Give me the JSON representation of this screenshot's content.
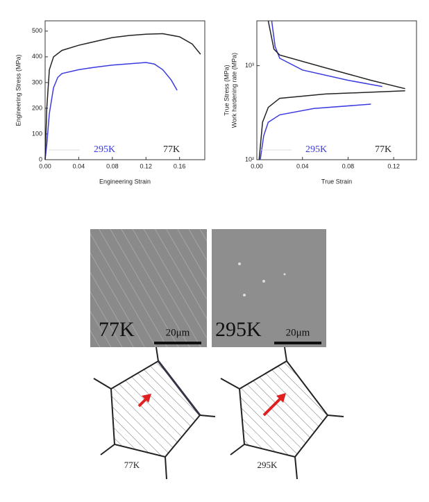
{
  "chart_data": [
    {
      "type": "line",
      "xlabel": "Engineering Strain",
      "ylabel": "Engineering Stress (MPa)",
      "xlim": [
        0,
        0.19
      ],
      "ylim": [
        0,
        540
      ],
      "xticks": [
        {
          "value": 0,
          "label": "0.00"
        },
        {
          "value": 0.04,
          "label": "0.04"
        },
        {
          "value": 0.08,
          "label": "0.08"
        },
        {
          "value": 0.12,
          "label": "0.12"
        },
        {
          "value": 0.16,
          "label": "0.16"
        }
      ],
      "yticks": [
        0,
        100,
        200,
        300,
        400,
        500
      ],
      "series": [
        {
          "name": "295K",
          "color": "#3a3ae0",
          "x": [
            0,
            0.002,
            0.005,
            0.01,
            0.015,
            0.02,
            0.04,
            0.06,
            0.08,
            0.1,
            0.12,
            0.13,
            0.14,
            0.15,
            0.157
          ],
          "values": [
            0,
            60,
            180,
            280,
            320,
            335,
            350,
            360,
            368,
            373,
            378,
            372,
            350,
            310,
            270
          ]
        },
        {
          "name": "77K",
          "color": "#222222",
          "x": [
            0,
            0.002,
            0.005,
            0.01,
            0.02,
            0.04,
            0.06,
            0.08,
            0.1,
            0.12,
            0.14,
            0.16,
            0.175,
            0.185
          ],
          "values": [
            0,
            200,
            350,
            400,
            425,
            445,
            460,
            475,
            483,
            488,
            490,
            478,
            450,
            410
          ]
        }
      ]
    },
    {
      "type": "line",
      "xlabel": "True Strain",
      "ylabel": [
        "True Stress (MPa)",
        "Work hardening rate (MPa)"
      ],
      "log_y": true,
      "xlim": [
        0,
        0.14
      ],
      "ylim": [
        100,
        3000
      ],
      "xticks": [
        {
          "value": 0,
          "label": "0.00"
        },
        {
          "value": 0.04,
          "label": "0.04"
        },
        {
          "value": 0.08,
          "label": "0.08"
        },
        {
          "value": 0.12,
          "label": "0.12"
        }
      ],
      "yticks": [
        {
          "value": 100,
          "label": "10²"
        },
        {
          "value": 1000,
          "label": "10³"
        }
      ],
      "series": [
        {
          "name": "295K",
          "color": "#3a3ae0",
          "x": [
            0.003,
            0.006,
            0.01,
            0.02,
            0.05,
            0.1
          ],
          "values": [
            100,
            180,
            250,
            300,
            350,
            390
          ]
        },
        {
          "color": "#3a3ae0",
          "x": [
            0.013,
            0.016,
            0.02,
            0.04,
            0.08,
            0.11
          ],
          "values": [
            3000,
            1600,
            1200,
            900,
            700,
            600
          ]
        },
        {
          "name": "77K",
          "color": "#222222",
          "x": [
            0.002,
            0.005,
            0.01,
            0.02,
            0.06,
            0.13
          ],
          "values": [
            100,
            250,
            360,
            450,
            500,
            540
          ]
        },
        {
          "color": "#222222",
          "x": [
            0.01,
            0.015,
            0.02,
            0.06,
            0.1,
            0.13
          ],
          "values": [
            3000,
            1500,
            1300,
            950,
            700,
            570
          ]
        }
      ]
    }
  ],
  "micrographs": [
    {
      "label": "77K",
      "scale_bar": "20μm"
    },
    {
      "label": "295K",
      "scale_bar": "20μm"
    }
  ],
  "schematics": [
    {
      "label": "77K"
    },
    {
      "label": "295K"
    }
  ]
}
